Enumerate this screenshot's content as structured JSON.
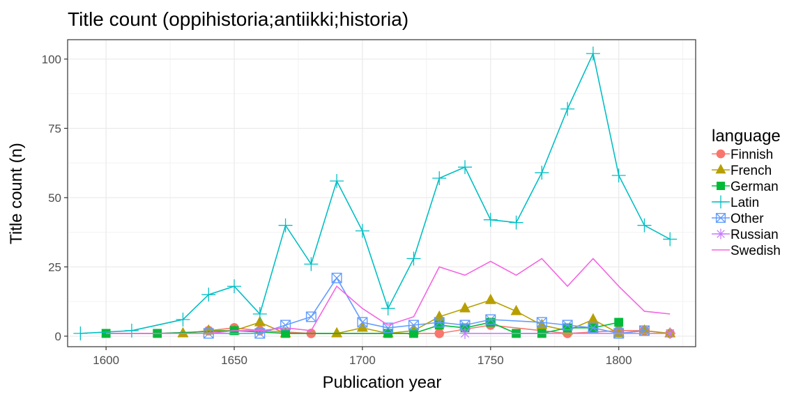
{
  "chart_data": {
    "type": "line",
    "title": "Title count (oppihistoria;antiikki;historia)",
    "xlabel": "Publication year",
    "ylabel": "Title count (n)",
    "xlim": [
      1585,
      1830
    ],
    "ylim": [
      -3.8,
      107
    ],
    "x_ticks": [
      1600,
      1650,
      1700,
      1750,
      1800
    ],
    "y_ticks": [
      0,
      25,
      50,
      75,
      100
    ],
    "grid": true,
    "legend": {
      "title": "language",
      "position": "right"
    },
    "series": [
      {
        "name": "Finnish",
        "color": "#F8766D",
        "marker": "circle",
        "x": [
          1640,
          1650,
          1660,
          1680,
          1730,
          1750,
          1780,
          1800,
          1810,
          1820
        ],
        "y": [
          2,
          3,
          2,
          1,
          1,
          4,
          1,
          2,
          2,
          1
        ]
      },
      {
        "name": "French",
        "color": "#B79F00",
        "marker": "triangle",
        "x": [
          1630,
          1640,
          1650,
          1660,
          1670,
          1690,
          1700,
          1710,
          1720,
          1730,
          1740,
          1750,
          1760,
          1770,
          1780,
          1790,
          1800,
          1810,
          1820
        ],
        "y": [
          1,
          2,
          2,
          5,
          1,
          1,
          3,
          1,
          2,
          7,
          10,
          13,
          9,
          4,
          2,
          6,
          1,
          2,
          1
        ]
      },
      {
        "name": "German",
        "color": "#00BA38",
        "marker": "square",
        "x": [
          1600,
          1620,
          1650,
          1670,
          1710,
          1720,
          1730,
          1740,
          1750,
          1760,
          1770,
          1780,
          1790,
          1800
        ],
        "y": [
          1,
          1,
          2,
          1,
          1,
          1,
          4,
          3,
          5,
          1,
          1,
          3,
          3,
          5
        ]
      },
      {
        "name": "Latin",
        "color": "#00BFC4",
        "marker": "plus",
        "x": [
          1590,
          1610,
          1630,
          1640,
          1650,
          1660,
          1670,
          1680,
          1690,
          1700,
          1710,
          1720,
          1730,
          1740,
          1750,
          1760,
          1770,
          1780,
          1790,
          1800,
          1810,
          1820
        ],
        "y": [
          1,
          2,
          6,
          15,
          18,
          8,
          40,
          26,
          56,
          38,
          10,
          28,
          57,
          61,
          42,
          41,
          59,
          82,
          102,
          58,
          40,
          35
        ]
      },
      {
        "name": "Other",
        "color": "#619CFF",
        "marker": "boxx",
        "x": [
          1640,
          1660,
          1670,
          1680,
          1690,
          1700,
          1710,
          1720,
          1730,
          1740,
          1750,
          1770,
          1780,
          1790,
          1800,
          1810
        ],
        "y": [
          1,
          1,
          4,
          7,
          21,
          5,
          3,
          4,
          5,
          4,
          6,
          5,
          4,
          3,
          1,
          2
        ]
      },
      {
        "name": "Russian",
        "color": "#C77CFF",
        "marker": "star",
        "x": [
          1740,
          1820
        ],
        "y": [
          1,
          1
        ]
      },
      {
        "name": "Swedish",
        "color": "#F564E3",
        "marker": "none",
        "x": [
          1600,
          1620,
          1640,
          1650,
          1660,
          1670,
          1680,
          1690,
          1700,
          1710,
          1720,
          1730,
          1740,
          1750,
          1760,
          1770,
          1780,
          1790,
          1800,
          1810,
          1820
        ],
        "y": [
          1,
          1,
          1,
          2,
          2,
          3,
          2,
          18,
          10,
          4,
          7,
          25,
          22,
          27,
          22,
          28,
          18,
          28,
          18,
          9,
          8
        ]
      }
    ]
  }
}
